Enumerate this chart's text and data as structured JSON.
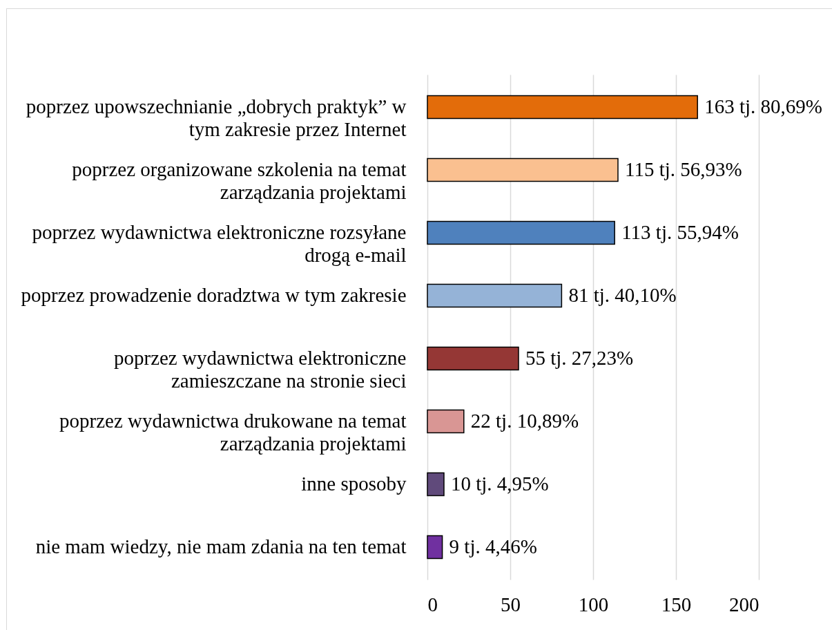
{
  "chart_data": {
    "type": "bar",
    "orientation": "horizontal",
    "categories": [
      "poprzez upowszechnianie „dobrych praktyk” w tym zakresie przez Internet",
      "poprzez organizowane szkolenia na temat zarządzania projektami",
      "poprzez wydawnictwa elektroniczne rozsyłane drogą e-mail",
      "poprzez prowadzenie doradztwa w tym zakresie",
      "poprzez wydawnictwa elektroniczne zamieszczane na stronie sieci",
      "poprzez wydawnictwa drukowane na temat zarządzania projektami",
      "inne sposoby",
      "nie mam wiedzy, nie mam zdania na ten temat"
    ],
    "values": [
      163,
      115,
      113,
      81,
      55,
      22,
      10,
      9
    ],
    "colors": [
      "#e36c0a",
      "#fac090",
      "#4f81bd",
      "#95b3d7",
      "#953735",
      "#d99694",
      "#604a7b",
      "#7030a0"
    ],
    "value_labels": [
      "163 tj. 80,69%",
      "115 tj. 56,93%",
      "113 tj. 55,94%",
      "81 tj. 40,10%",
      "55 tj. 27,23%",
      "22 tj. 10,89%",
      "10 tj. 4,95%",
      "9 tj. 4,46%"
    ],
    "xlim": [
      0,
      200
    ],
    "xticks": [
      0,
      50,
      100,
      150,
      200
    ],
    "grid": "x"
  }
}
